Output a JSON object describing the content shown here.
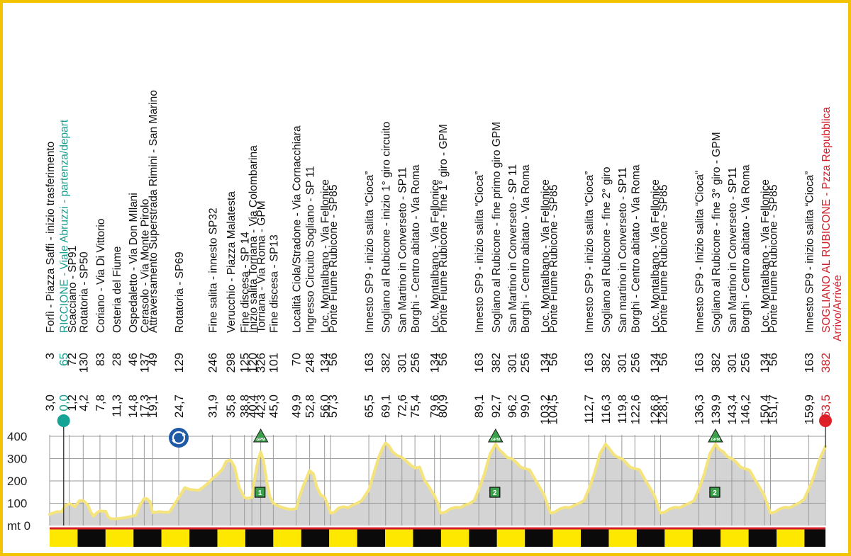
{
  "chart_data": {
    "type": "area",
    "x_unit": "km",
    "y_unit": "mt",
    "ylim": [
      0,
      400
    ],
    "xlim": [
      -3.0,
      163.5
    ],
    "y_ticks": [
      {
        "value": 0,
        "label": "mt 0"
      },
      {
        "value": 100,
        "label": "100"
      },
      {
        "value": 200,
        "label": "200"
      },
      {
        "value": 300,
        "label": "300"
      },
      {
        "value": 400,
        "label": "400"
      }
    ],
    "colors": {
      "profile_fill": "#d4d4d4",
      "profile_line": "#f5e47c",
      "grid": "#9a9a9a",
      "start_marker": "#14a394",
      "finish_marker": "#e02027",
      "gpm_marker": "#3aa14a",
      "sprint_box": "#3aa14a",
      "border": "#f2c400",
      "finish_text": "#d4202a",
      "start_text": "#1a9e8e",
      "roundabout_icon": "#1f5aa6"
    },
    "checkpoints": [
      {
        "dist": "3,0",
        "km": -3.0,
        "alt": "3",
        "desc": "Forlì - Piazza Saffi - inizio trasferimento",
        "style": "normal"
      },
      {
        "dist": "0,0",
        "km": 0.0,
        "alt": "65",
        "desc": "RICCIONE - Viale Abruzzi - partenza/depart",
        "style": "start"
      },
      {
        "dist": "1,2",
        "km": 1.2,
        "alt": "72",
        "desc": "Scacciano - SP91",
        "style": "normal"
      },
      {
        "dist": "4,2",
        "km": 4.2,
        "alt": "130",
        "desc": "Rotatoria - SP50",
        "style": "normal"
      },
      {
        "dist": "7,8",
        "km": 7.8,
        "alt": "83",
        "desc": "Coriano - Via Di Vittorio",
        "style": "normal"
      },
      {
        "dist": "11,3",
        "km": 11.3,
        "alt": "28",
        "desc": "Osteria del Fiume",
        "style": "normal"
      },
      {
        "dist": "14,8",
        "km": 14.8,
        "alt": "46",
        "desc": "Ospedaletto - Via Don MIlani",
        "style": "normal"
      },
      {
        "dist": "17,3",
        "km": 17.3,
        "alt": "137",
        "desc": "Cerasolo - Via Monte Pirolo",
        "style": "normal"
      },
      {
        "dist": "19,1",
        "km": 19.1,
        "alt": "49",
        "desc": "Attraversamento Superstrada Rimini - San Marino",
        "style": "normal"
      },
      {
        "dist": "24,7",
        "km": 24.7,
        "alt": "129",
        "desc": "Rotatoria - SP69",
        "style": "normal"
      },
      {
        "dist": "31,9",
        "km": 31.9,
        "alt": "246",
        "desc": "Fine salita - innesto SP32",
        "style": "normal"
      },
      {
        "dist": "35,8",
        "km": 35.8,
        "alt": "298",
        "desc": "Verucchio - Piazza Malatesta",
        "style": "normal"
      },
      {
        "dist": "38,8",
        "km": 38.8,
        "alt": "125",
        "desc": "Fine discesa - SP 14",
        "style": "normal"
      },
      {
        "dist": "40,4",
        "km": 40.4,
        "alt": "120",
        "desc": "Inizio salita Torriana - Via Colombarina",
        "style": "normal"
      },
      {
        "dist": "42,3",
        "km": 42.3,
        "alt": "326",
        "desc": "Torriana - Via Roma - GPM",
        "style": "normal"
      },
      {
        "dist": "45,0",
        "km": 45.0,
        "alt": "101",
        "desc": "Fine discesa - SP13",
        "style": "normal"
      },
      {
        "dist": "49,9",
        "km": 49.9,
        "alt": "70",
        "desc": "Località Ciola/Stradone - Via Cornacchiara",
        "style": "normal"
      },
      {
        "dist": "52,8",
        "km": 52.8,
        "alt": "248",
        "desc": "Ingresso Circuito Sogliano - SP 11",
        "style": "normal"
      },
      {
        "dist": "56,0",
        "km": 56.0,
        "alt": "134",
        "desc": "Loc. Montalbano - Via Fellonice",
        "style": "normal"
      },
      {
        "dist": "57,3",
        "km": 57.3,
        "alt": "56",
        "desc": "Ponte Fiume Rubicone - SP85",
        "style": "normal"
      },
      {
        "dist": "65,5",
        "km": 65.5,
        "alt": "163",
        "desc": "Innesto SP9 - inizio salita “Cioca”",
        "style": "normal"
      },
      {
        "dist": "69,1",
        "km": 69.1,
        "alt": "382",
        "desc": "Sogliano al Rubicone - inizio 1° giro circuito",
        "style": "normal"
      },
      {
        "dist": "72,6",
        "km": 72.6,
        "alt": "301",
        "desc": "San Martino in Converseto - SP11",
        "style": "normal"
      },
      {
        "dist": "75,4",
        "km": 75.4,
        "alt": "256",
        "desc": "Borghi - Centro abitato - Via Roma",
        "style": "normal"
      },
      {
        "dist": "79,6",
        "km": 79.6,
        "alt": "134",
        "desc": "Loc. Montalbano - Via Fellonice",
        "style": "normal"
      },
      {
        "dist": "80,9",
        "km": 80.9,
        "alt": "56",
        "desc": "Ponte Fiume Rubicone - fine 1° giro - GPM",
        "style": "normal"
      },
      {
        "dist": "89,1",
        "km": 89.1,
        "alt": "163",
        "desc": "Innesto SP9 - inizio salita “Cioca”",
        "style": "normal"
      },
      {
        "dist": "92,7",
        "km": 92.7,
        "alt": "382",
        "desc": "Sogliano al Rubicone - fine primo giro GPM",
        "style": "normal"
      },
      {
        "dist": "96,2",
        "km": 96.2,
        "alt": "301",
        "desc": "San Martino in Converseto - SP 11",
        "style": "normal"
      },
      {
        "dist": "99,0",
        "km": 99.0,
        "alt": "256",
        "desc": "Borghi - Centro abitato - Via Roma",
        "style": "normal"
      },
      {
        "dist": "103,2",
        "km": 103.2,
        "alt": "134",
        "desc": "Loc. Montalbano - Via Fellonice",
        "style": "normal"
      },
      {
        "dist": "104,5",
        "km": 104.5,
        "alt": "56",
        "desc": "Ponte Fiume Rubicone - SP85",
        "style": "normal"
      },
      {
        "dist": "112,7",
        "km": 112.7,
        "alt": "163",
        "desc": "Innesto SP9 - inizio salita “Cioca”",
        "style": "normal"
      },
      {
        "dist": "116,3",
        "km": 116.3,
        "alt": "382",
        "desc": "Sogliano al Rubicone - fine 2° giro",
        "style": "normal"
      },
      {
        "dist": "119,8",
        "km": 119.8,
        "alt": "301",
        "desc": "San martino in Converseto - SP11",
        "style": "normal"
      },
      {
        "dist": "122,6",
        "km": 122.6,
        "alt": "256",
        "desc": "Borghi - Centro abitato - Via Roma",
        "style": "normal"
      },
      {
        "dist": "126,8",
        "km": 126.8,
        "alt": "134",
        "desc": "Loc. Montalbano - Via Fellonice",
        "style": "normal"
      },
      {
        "dist": "128,1",
        "km": 128.1,
        "alt": "56",
        "desc": "Ponte Fiume Rubicone - SP85",
        "style": "normal"
      },
      {
        "dist": "136,3",
        "km": 136.3,
        "alt": "163",
        "desc": "Innesto SP9 - Inizio salita “Cioca”",
        "style": "normal"
      },
      {
        "dist": "139,9",
        "km": 139.9,
        "alt": "382",
        "desc": "Sogliano al Rubicone - fine 3° giro - GPM",
        "style": "normal"
      },
      {
        "dist": "143,4",
        "km": 143.4,
        "alt": "301",
        "desc": "San Martino in Converseto - SP11",
        "style": "normal"
      },
      {
        "dist": "146,2",
        "km": 146.2,
        "alt": "256",
        "desc": "Borghi - Centro abitato - Via Roma",
        "style": "normal"
      },
      {
        "dist": "150,4",
        "km": 150.4,
        "alt": "134",
        "desc": "Loc. Montalbano - Via Fellonice",
        "style": "normal"
      },
      {
        "dist": "151,7",
        "km": 151.7,
        "alt": "56",
        "desc": "Ponte Fiume Rubicone - SP85",
        "style": "normal"
      },
      {
        "dist": "159,9",
        "km": 159.9,
        "alt": "163",
        "desc": "Innesto SP9 - inizio salita “Cioca”",
        "style": "normal"
      },
      {
        "dist": "163,5",
        "km": 163.5,
        "alt": "382",
        "desc": "SOGLIANO AL RUBICONE - Pzza Repubblica",
        "desc2": "Arrivo/Arrivée",
        "style": "finish"
      }
    ],
    "profile": [
      [
        -3.0,
        50
      ],
      [
        -1.5,
        62
      ],
      [
        -0.4,
        62
      ],
      [
        0.4,
        90
      ],
      [
        1.3,
        98
      ],
      [
        2.4,
        84
      ],
      [
        3.4,
        112
      ],
      [
        4.2,
        112
      ],
      [
        5.2,
        92
      ],
      [
        5.8,
        62
      ],
      [
        6.4,
        42
      ],
      [
        7.2,
        58
      ],
      [
        7.8,
        66
      ],
      [
        8.4,
        64
      ],
      [
        9.0,
        64
      ],
      [
        9.6,
        38
      ],
      [
        10.2,
        30
      ],
      [
        11.3,
        30
      ],
      [
        12.8,
        34
      ],
      [
        14.3,
        40
      ],
      [
        15.5,
        46
      ],
      [
        16.4,
        92
      ],
      [
        17.3,
        122
      ],
      [
        17.9,
        120
      ],
      [
        18.6,
        105
      ],
      [
        19.1,
        58
      ],
      [
        19.7,
        60
      ],
      [
        20.5,
        62
      ],
      [
        21.6,
        60
      ],
      [
        22.7,
        60
      ],
      [
        23.7,
        92
      ],
      [
        24.7,
        125
      ],
      [
        26.0,
        170
      ],
      [
        27.0,
        162
      ],
      [
        28.0,
        160
      ],
      [
        29.0,
        158
      ],
      [
        30.0,
        172
      ],
      [
        31.0,
        190
      ],
      [
        31.9,
        210
      ],
      [
        33.0,
        230
      ],
      [
        34.0,
        250
      ],
      [
        34.9,
        288
      ],
      [
        35.8,
        294
      ],
      [
        36.7,
        262
      ],
      [
        37.7,
        170
      ],
      [
        38.8,
        126
      ],
      [
        39.5,
        122
      ],
      [
        40.4,
        126
      ],
      [
        41.1,
        225
      ],
      [
        41.7,
        292
      ],
      [
        42.3,
        330
      ],
      [
        42.9,
        290
      ],
      [
        43.6,
        195
      ],
      [
        44.3,
        128
      ],
      [
        45.0,
        100
      ],
      [
        46.2,
        86
      ],
      [
        47.4,
        78
      ],
      [
        48.7,
        72
      ],
      [
        49.9,
        76
      ],
      [
        50.7,
        135
      ],
      [
        51.5,
        182
      ],
      [
        52.2,
        215
      ],
      [
        52.8,
        246
      ],
      [
        53.6,
        232
      ],
      [
        54.3,
        175
      ],
      [
        55.1,
        138
      ],
      [
        56.0,
        128
      ],
      [
        56.6,
        95
      ],
      [
        57.3,
        56
      ],
      [
        58.1,
        60
      ],
      [
        59.0,
        78
      ],
      [
        60.0,
        84
      ],
      [
        61.1,
        80
      ],
      [
        62.0,
        92
      ],
      [
        63.0,
        100
      ],
      [
        64.0,
        112
      ],
      [
        65.5,
        160
      ],
      [
        66.5,
        230
      ],
      [
        67.6,
        305
      ],
      [
        68.5,
        350
      ],
      [
        69.1,
        370
      ],
      [
        69.7,
        360
      ],
      [
        70.6,
        330
      ],
      [
        71.5,
        315
      ],
      [
        72.6,
        305
      ],
      [
        73.4,
        292
      ],
      [
        74.4,
        272
      ],
      [
        75.4,
        258
      ],
      [
        76.4,
        262
      ],
      [
        77.4,
        205
      ],
      [
        78.5,
        170
      ],
      [
        79.6,
        134
      ],
      [
        80.3,
        98
      ],
      [
        80.9,
        56
      ],
      [
        81.9,
        60
      ],
      [
        83.0,
        75
      ],
      [
        84.1,
        82
      ],
      [
        85.1,
        80
      ],
      [
        86.1,
        92
      ],
      [
        87.1,
        98
      ],
      [
        88.1,
        112
      ],
      [
        89.1,
        162
      ],
      [
        90.3,
        230
      ],
      [
        91.5,
        320
      ],
      [
        92.7,
        365
      ],
      [
        93.5,
        340
      ],
      [
        94.4,
        322
      ],
      [
        95.2,
        305
      ],
      [
        96.2,
        300
      ],
      [
        97.2,
        282
      ],
      [
        98.1,
        262
      ],
      [
        99.0,
        255
      ],
      [
        100.0,
        250
      ],
      [
        101.1,
        210
      ],
      [
        102.2,
        170
      ],
      [
        103.2,
        134
      ],
      [
        103.8,
        95
      ],
      [
        104.5,
        56
      ],
      [
        105.4,
        60
      ],
      [
        106.5,
        75
      ],
      [
        107.6,
        82
      ],
      [
        108.6,
        80
      ],
      [
        109.7,
        92
      ],
      [
        110.7,
        100
      ],
      [
        111.7,
        112
      ],
      [
        112.7,
        162
      ],
      [
        113.9,
        232
      ],
      [
        115.1,
        322
      ],
      [
        116.3,
        365
      ],
      [
        117.1,
        345
      ],
      [
        118.0,
        320
      ],
      [
        118.9,
        306
      ],
      [
        119.8,
        300
      ],
      [
        120.7,
        282
      ],
      [
        121.6,
        262
      ],
      [
        122.6,
        255
      ],
      [
        123.6,
        250
      ],
      [
        124.7,
        208
      ],
      [
        125.8,
        170
      ],
      [
        126.8,
        134
      ],
      [
        127.4,
        96
      ],
      [
        128.1,
        56
      ],
      [
        129.0,
        60
      ],
      [
        130.1,
        75
      ],
      [
        131.2,
        82
      ],
      [
        132.2,
        80
      ],
      [
        133.3,
        92
      ],
      [
        134.3,
        100
      ],
      [
        135.3,
        112
      ],
      [
        136.3,
        162
      ],
      [
        137.5,
        232
      ],
      [
        138.7,
        322
      ],
      [
        139.9,
        365
      ],
      [
        140.7,
        342
      ],
      [
        141.6,
        330
      ],
      [
        142.5,
        308
      ],
      [
        143.4,
        300
      ],
      [
        144.3,
        285
      ],
      [
        145.3,
        262
      ],
      [
        146.2,
        255
      ],
      [
        147.2,
        248
      ],
      [
        148.3,
        208
      ],
      [
        149.4,
        170
      ],
      [
        150.4,
        134
      ],
      [
        151.0,
        96
      ],
      [
        151.7,
        56
      ],
      [
        152.6,
        60
      ],
      [
        153.7,
        75
      ],
      [
        154.8,
        82
      ],
      [
        155.8,
        80
      ],
      [
        156.9,
        92
      ],
      [
        157.9,
        102
      ],
      [
        158.9,
        118
      ],
      [
        159.9,
        162
      ],
      [
        161.0,
        220
      ],
      [
        162.3,
        300
      ],
      [
        163.5,
        355
      ]
    ],
    "markers": {
      "start": {
        "km": 0.0
      },
      "finish": {
        "km": 163.5
      },
      "roundabout": {
        "km": 24.7,
        "name": "roundabout-icon"
      },
      "gpm": [
        {
          "km": 42.3,
          "label": "GPM"
        },
        {
          "km": 92.7,
          "label": "GPM"
        },
        {
          "km": 139.9,
          "label": "GPM"
        }
      ],
      "sprints": [
        {
          "km": 42.3,
          "label": "1"
        },
        {
          "km": 92.7,
          "label": "2"
        },
        {
          "km": 139.9,
          "label": "2"
        }
      ]
    },
    "km_bar_segments": [
      {
        "from": -3.0,
        "to": 3.0,
        "color": "yellow"
      },
      {
        "from": 3.0,
        "to": 9.0,
        "color": "black"
      },
      {
        "from": 9.0,
        "to": 15.0,
        "color": "yellow"
      },
      {
        "from": 15.0,
        "to": 21.0,
        "color": "black"
      },
      {
        "from": 21.0,
        "to": 27.0,
        "color": "yellow"
      },
      {
        "from": 27.0,
        "to": 33.0,
        "color": "black"
      },
      {
        "from": 33.0,
        "to": 39.0,
        "color": "yellow"
      },
      {
        "from": 39.0,
        "to": 45.0,
        "color": "black"
      },
      {
        "from": 45.0,
        "to": 51.0,
        "color": "yellow"
      },
      {
        "from": 51.0,
        "to": 57.0,
        "color": "black"
      },
      {
        "from": 57.0,
        "to": 63.0,
        "color": "yellow"
      },
      {
        "from": 63.0,
        "to": 69.0,
        "color": "black"
      },
      {
        "from": 69.0,
        "to": 75.0,
        "color": "yellow"
      },
      {
        "from": 75.0,
        "to": 81.0,
        "color": "black"
      },
      {
        "from": 81.0,
        "to": 87.0,
        "color": "yellow"
      },
      {
        "from": 87.0,
        "to": 93.0,
        "color": "black"
      },
      {
        "from": 93.0,
        "to": 99.0,
        "color": "yellow"
      },
      {
        "from": 99.0,
        "to": 105.0,
        "color": "black"
      },
      {
        "from": 105.0,
        "to": 111.0,
        "color": "yellow"
      },
      {
        "from": 111.0,
        "to": 117.0,
        "color": "black"
      },
      {
        "from": 117.0,
        "to": 123.0,
        "color": "yellow"
      },
      {
        "from": 123.0,
        "to": 129.0,
        "color": "black"
      },
      {
        "from": 129.0,
        "to": 135.0,
        "color": "yellow"
      },
      {
        "from": 135.0,
        "to": 141.0,
        "color": "black"
      },
      {
        "from": 141.0,
        "to": 147.0,
        "color": "yellow"
      },
      {
        "from": 147.0,
        "to": 153.0,
        "color": "black"
      },
      {
        "from": 153.0,
        "to": 159.0,
        "color": "yellow"
      },
      {
        "from": 159.0,
        "to": 163.5,
        "color": "black"
      }
    ]
  }
}
